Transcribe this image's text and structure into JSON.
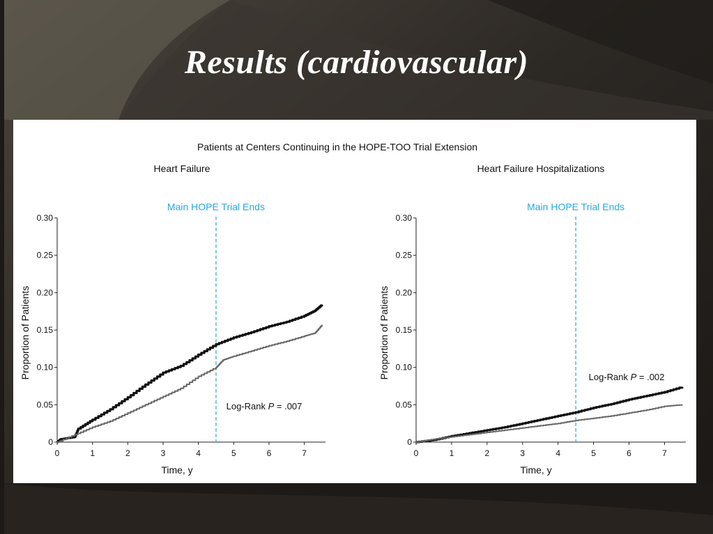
{
  "slide": {
    "title": "Results (cardiovascular)"
  },
  "figure": {
    "title": "Patients at Centers Continuing in the HOPE-TOO Trial Extension"
  },
  "colors": {
    "accent": "#29a8e0",
    "series_dark": "#111111",
    "series_gray": "#666666"
  },
  "chart_data": [
    {
      "type": "line",
      "title": "Heart Failure",
      "xlabel": "Time, y",
      "ylabel": "Proportion of Patients",
      "xlim": [
        0,
        7.6
      ],
      "ylim": [
        0,
        0.3
      ],
      "x_ticks": [
        "0",
        "1",
        "2",
        "3",
        "4",
        "5",
        "6",
        "7"
      ],
      "y_ticks": [
        "0",
        "0.05",
        "0.10",
        "0.15",
        "0.20",
        "0.25",
        "0.30"
      ],
      "vline": {
        "x": 4.5,
        "label": "Main HOPE Trial Ends"
      },
      "annotation": {
        "prefix": "Log-Rank ",
        "italic": "P",
        "suffix": " = .007"
      },
      "series": [
        {
          "x": [
            0,
            0.1,
            0.5,
            0.6,
            1.0,
            1.5,
            2.0,
            2.5,
            3.0,
            3.5,
            4.0,
            4.5,
            5.0,
            5.5,
            6.0,
            6.5,
            7.0,
            7.3,
            7.5
          ],
          "values": [
            0,
            0.004,
            0.007,
            0.018,
            0.03,
            0.044,
            0.06,
            0.077,
            0.093,
            0.102,
            0.117,
            0.131,
            0.14,
            0.147,
            0.155,
            0.161,
            0.169,
            0.176,
            0.184
          ]
        },
        {
          "x": [
            0,
            0.5,
            1.0,
            1.5,
            2.0,
            2.5,
            3.0,
            3.5,
            4.0,
            4.5,
            4.7,
            5.0,
            5.5,
            6.0,
            6.5,
            7.0,
            7.3,
            7.5
          ],
          "values": [
            0,
            0.01,
            0.02,
            0.028,
            0.039,
            0.05,
            0.061,
            0.072,
            0.088,
            0.1,
            0.11,
            0.115,
            0.122,
            0.129,
            0.135,
            0.142,
            0.146,
            0.157
          ]
        }
      ]
    },
    {
      "type": "line",
      "title": "Heart Failure Hospitalizations",
      "xlabel": "Time, y",
      "ylabel": "Proportion of Patients",
      "xlim": [
        0,
        7.6
      ],
      "ylim": [
        0,
        0.3
      ],
      "x_ticks": [
        "0",
        "1",
        "2",
        "3",
        "4",
        "5",
        "6",
        "7"
      ],
      "y_ticks": [
        "0",
        "0.05",
        "0.10",
        "0.15",
        "0.20",
        "0.25",
        "0.30"
      ],
      "vline": {
        "x": 4.5,
        "label": "Main HOPE Trial Ends"
      },
      "annotation": {
        "prefix": "Log-Rank ",
        "italic": "P",
        "suffix": " = .002"
      },
      "series": [
        {
          "x": [
            0,
            0.5,
            1.0,
            1.5,
            2.0,
            2.5,
            3.0,
            3.5,
            4.0,
            4.5,
            5.0,
            5.5,
            6.0,
            6.5,
            7.0,
            7.5
          ],
          "values": [
            0,
            0.003,
            0.008,
            0.012,
            0.016,
            0.02,
            0.025,
            0.03,
            0.035,
            0.04,
            0.046,
            0.051,
            0.057,
            0.062,
            0.067,
            0.074
          ]
        },
        {
          "x": [
            0,
            0.5,
            1.0,
            1.5,
            2.0,
            2.5,
            3.0,
            3.5,
            4.0,
            4.5,
            5.0,
            5.5,
            6.0,
            6.5,
            7.0,
            7.5
          ],
          "values": [
            0,
            0.004,
            0.007,
            0.01,
            0.013,
            0.016,
            0.019,
            0.022,
            0.025,
            0.029,
            0.032,
            0.035,
            0.039,
            0.043,
            0.048,
            0.05
          ]
        }
      ]
    }
  ]
}
